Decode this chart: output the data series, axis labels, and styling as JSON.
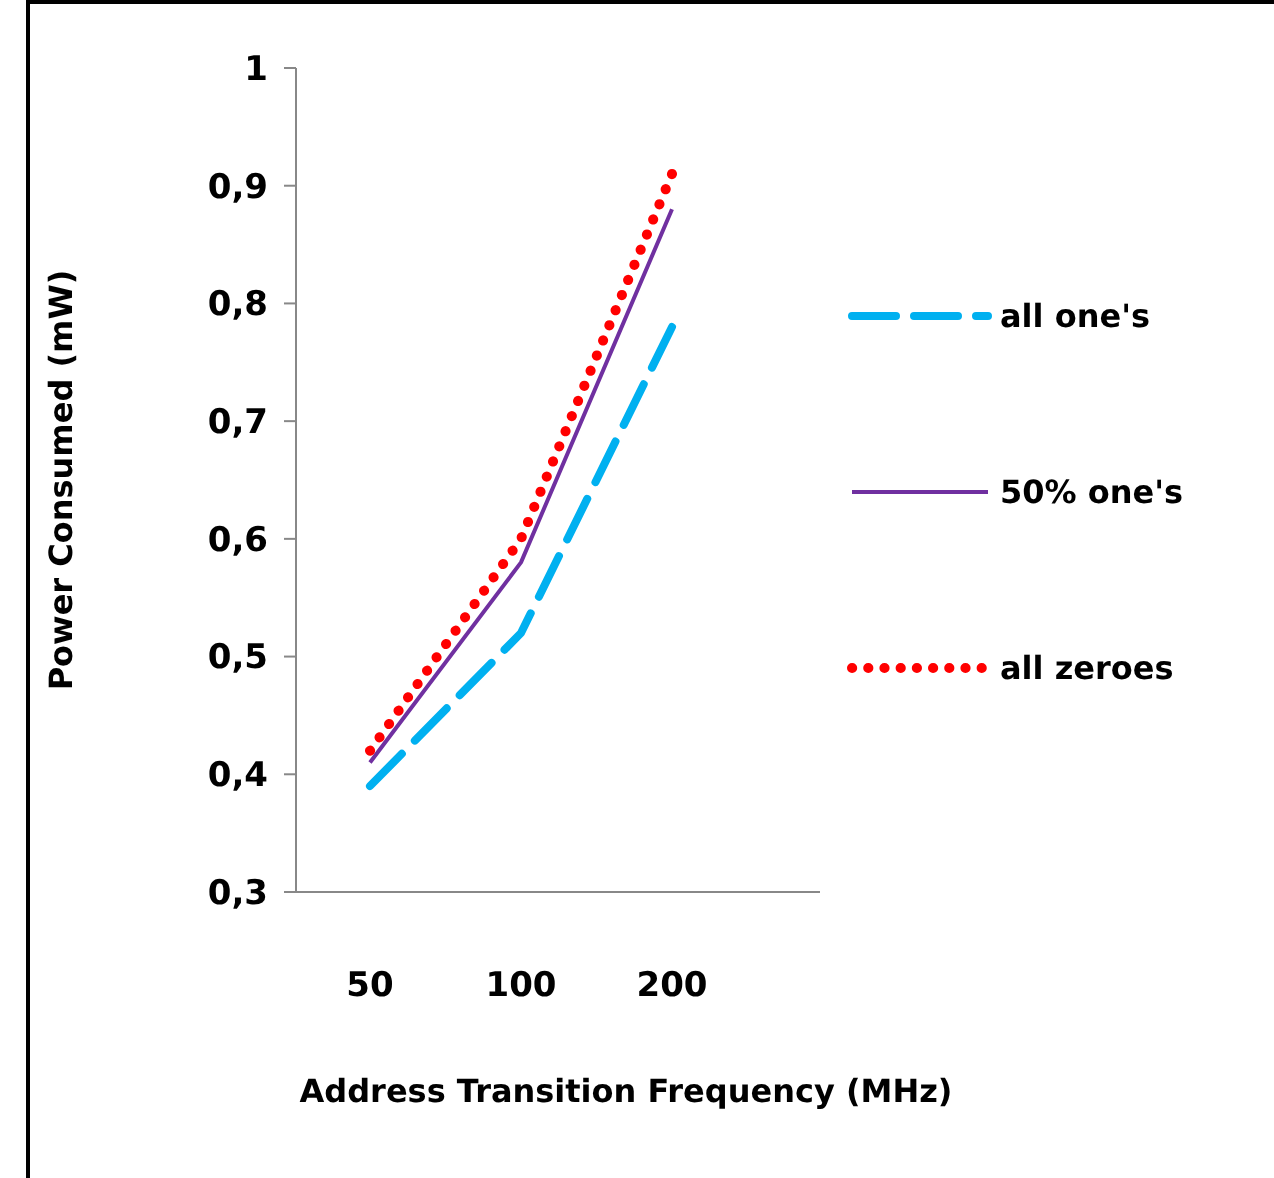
{
  "chart_data": {
    "type": "line",
    "xlabel": "Address Transition Frequency (MHz)",
    "ylabel": "Power Consumed  (mW)",
    "categories": [
      "50",
      "100",
      "200"
    ],
    "ylim": [
      0.3,
      1
    ],
    "yticks": [
      {
        "value": 0.3,
        "label": "0,3"
      },
      {
        "value": 0.4,
        "label": "0,4"
      },
      {
        "value": 0.5,
        "label": "0,5"
      },
      {
        "value": 0.6,
        "label": "0,6"
      },
      {
        "value": 0.7,
        "label": "0,7"
      },
      {
        "value": 0.8,
        "label": "0,8"
      },
      {
        "value": 0.9,
        "label": "0,9"
      },
      {
        "value": 1,
        "label": "1"
      }
    ],
    "grid": false,
    "legend": "right",
    "marker": "none",
    "series": [
      {
        "name": "all one's",
        "color": "#00b0f0",
        "line_style": "dashed",
        "values": [
          0.39,
          0.52,
          0.78
        ]
      },
      {
        "name": "50% one's",
        "color": "#7030a0",
        "line_style": "solid",
        "values": [
          0.41,
          0.58,
          0.88
        ]
      },
      {
        "name": "all zeroes",
        "color": "#ff0000",
        "line_style": "dotted",
        "values": [
          0.42,
          0.6,
          0.91
        ]
      }
    ]
  }
}
